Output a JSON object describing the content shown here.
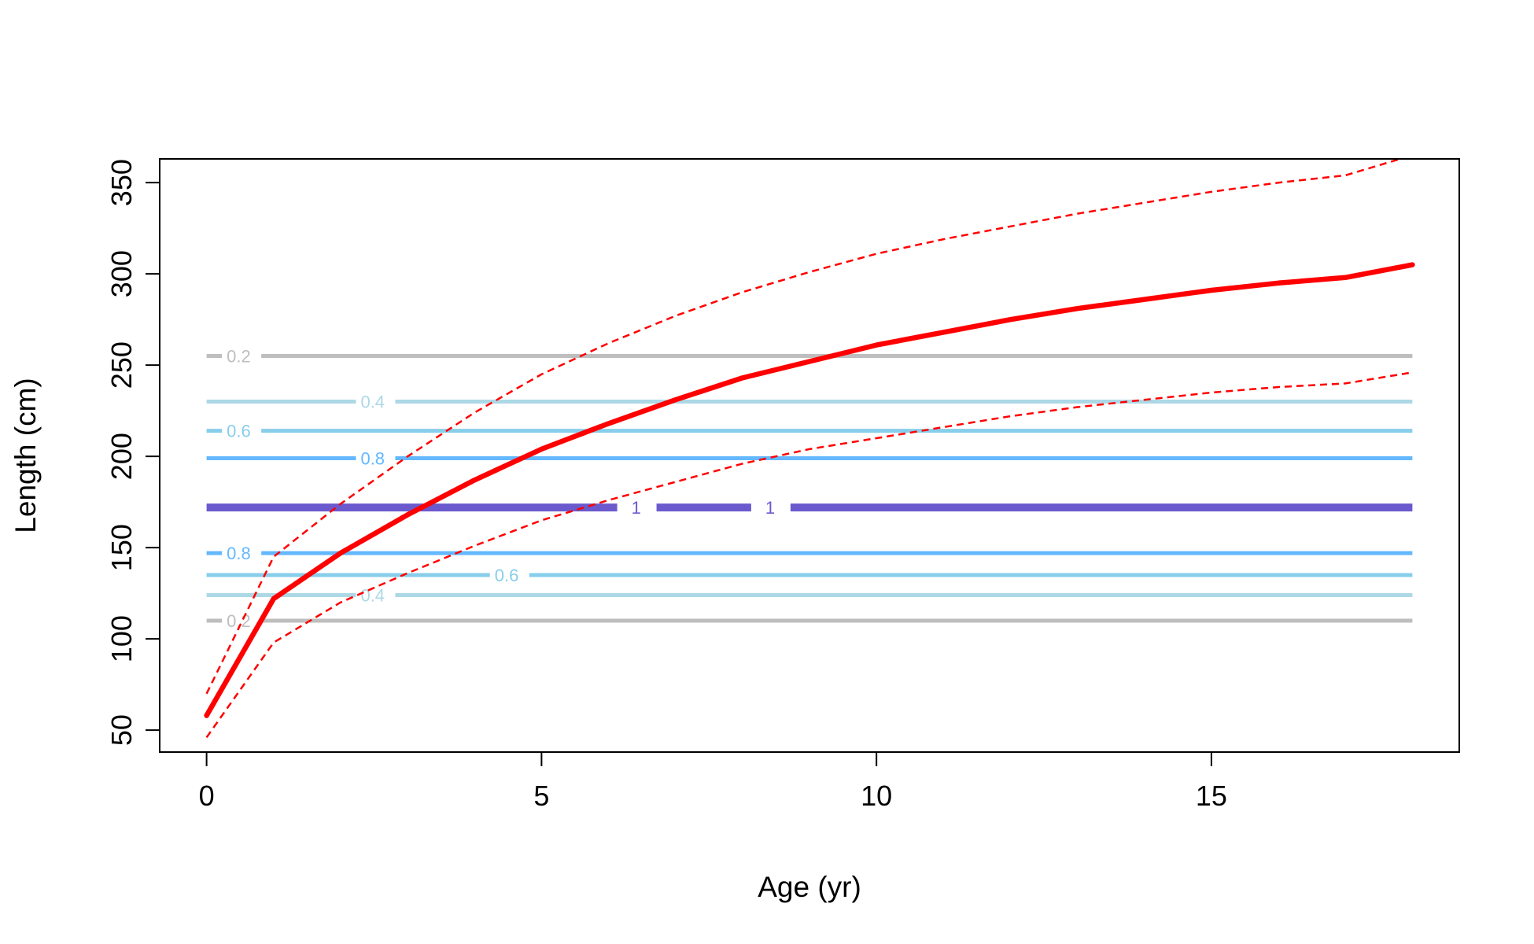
{
  "chart_data": {
    "type": "line",
    "xlabel": "Age (yr)",
    "ylabel": "Length (cm)",
    "xlim": [
      -0.7,
      18.7
    ],
    "ylim": [
      38,
      363
    ],
    "x_ticks": [
      0,
      5,
      10,
      15
    ],
    "y_ticks": [
      50,
      100,
      150,
      200,
      250,
      300,
      350
    ],
    "grid": false,
    "legend": "none",
    "series": [
      {
        "style": "solid-thick",
        "color": "#ff0000",
        "x": [
          0,
          1,
          2,
          3,
          4,
          5,
          6,
          7,
          8,
          9,
          10,
          11,
          12,
          13,
          14,
          15,
          16,
          17,
          18
        ],
        "y": [
          58,
          122,
          147,
          168,
          187,
          204,
          218,
          231,
          243,
          252,
          261,
          268,
          275,
          281,
          286,
          291,
          295,
          298,
          305
        ]
      },
      {
        "style": "dashed",
        "color": "#ff0000",
        "x": [
          0,
          1,
          2,
          3,
          4,
          5,
          6,
          7,
          8,
          9,
          10,
          11,
          12,
          13,
          14,
          15,
          16,
          17,
          18
        ],
        "y": [
          70,
          145,
          174,
          200,
          224,
          245,
          262,
          277,
          290,
          301,
          311,
          319,
          326,
          333,
          339,
          345,
          350,
          354,
          365
        ]
      },
      {
        "style": "dashed",
        "color": "#ff0000",
        "x": [
          0,
          1,
          2,
          3,
          4,
          5,
          6,
          7,
          8,
          9,
          10,
          11,
          12,
          13,
          14,
          15,
          16,
          17,
          18
        ],
        "y": [
          46,
          98,
          120,
          136,
          151,
          165,
          176,
          186,
          196,
          204,
          210,
          216,
          222,
          227,
          231,
          235,
          238,
          240,
          246
        ]
      }
    ],
    "contour_levels": [
      {
        "label": "0.2",
        "y": 255,
        "color": "#bebebe",
        "label_at": 0.3
      },
      {
        "label": "0.4",
        "y": 230,
        "color": "#add8e6",
        "label_at": 2.3
      },
      {
        "label": "0.6",
        "y": 214,
        "color": "#87ceeb",
        "label_at": 0.3
      },
      {
        "label": "0.8",
        "y": 199,
        "color": "#63b8ff",
        "label_at": 2.3
      },
      {
        "label": "1",
        "y": 172,
        "color": "#6a5acd",
        "label_at": 6.2
      },
      {
        "label": "1",
        "y": 172,
        "color": "#6a5acd",
        "label_at": 8.2
      },
      {
        "label": "0.8",
        "y": 147,
        "color": "#63b8ff",
        "label_at": 0.3
      },
      {
        "label": "0.6",
        "y": 135,
        "color": "#87ceeb",
        "label_at": 4.3
      },
      {
        "label": "0.4",
        "y": 124,
        "color": "#add8e6",
        "label_at": 2.3
      },
      {
        "label": "0.2",
        "y": 110,
        "color": "#bebebe",
        "label_at": 0.3
      }
    ]
  }
}
